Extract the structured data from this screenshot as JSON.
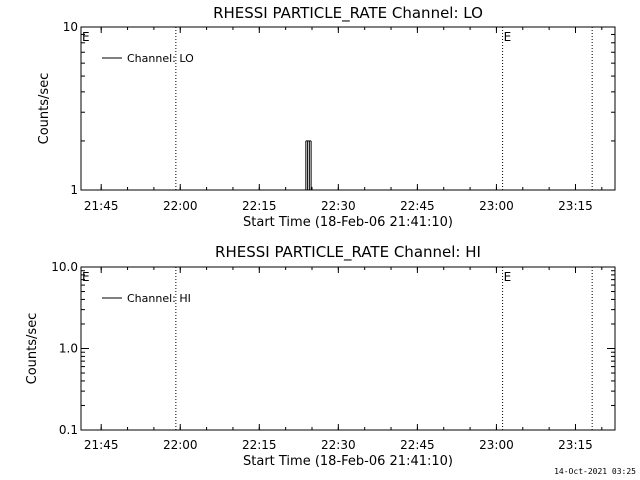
{
  "chart_data": [
    {
      "type": "line",
      "title": "RHESSI PARTICLE_RATE Channel: LO",
      "xlabel": "Start Time (18-Feb-06 21:41:10)",
      "ylabel": "Counts/sec",
      "yscale": "log",
      "ylim": [
        1,
        10
      ],
      "yticks": [
        "10",
        "1"
      ],
      "xlim": [
        "21:41:10",
        "23:22:30"
      ],
      "xticks": [
        "21:45",
        "22:00",
        "22:15",
        "22:30",
        "22:45",
        "23:00",
        "23:15"
      ],
      "legend": {
        "placement": "top-left",
        "label": "Channel: LO"
      },
      "event_markers": [
        {
          "time": "21:41:10",
          "label": "E"
        },
        {
          "time": "23:01:10",
          "label": "E"
        }
      ],
      "vertical_dotted_lines": [
        "21:59:10",
        "23:01:10",
        "23:18:10"
      ],
      "series": [
        {
          "points": [
            {
              "t": "22:23:50",
              "y": 2
            },
            {
              "t": "22:24:10",
              "y": 2
            },
            {
              "t": "22:24:30",
              "y": 2
            },
            {
              "t": "22:24:50",
              "y": 2
            }
          ]
        }
      ]
    },
    {
      "type": "line",
      "title": "RHESSI PARTICLE_RATE Channel: HI",
      "xlabel": "Start Time (18-Feb-06 21:41:10)",
      "ylabel": "Counts/sec",
      "yscale": "log",
      "ylim": [
        0.1,
        10
      ],
      "yticks": [
        "10.0",
        "1.0",
        "0.1"
      ],
      "xlim": [
        "21:41:10",
        "23:22:30"
      ],
      "xticks": [
        "21:45",
        "22:00",
        "22:15",
        "22:30",
        "22:45",
        "23:00",
        "23:15"
      ],
      "legend": {
        "placement": "top-left",
        "label": "Channel: HI"
      },
      "event_markers": [
        {
          "time": "21:41:10",
          "label": "E"
        },
        {
          "time": "23:01:10",
          "label": "E"
        }
      ],
      "vertical_dotted_lines": [
        "21:59:10",
        "23:01:10",
        "23:18:10"
      ],
      "series": [
        {
          "points": []
        }
      ]
    }
  ],
  "timestamp": "14-Oct-2021 03:25"
}
